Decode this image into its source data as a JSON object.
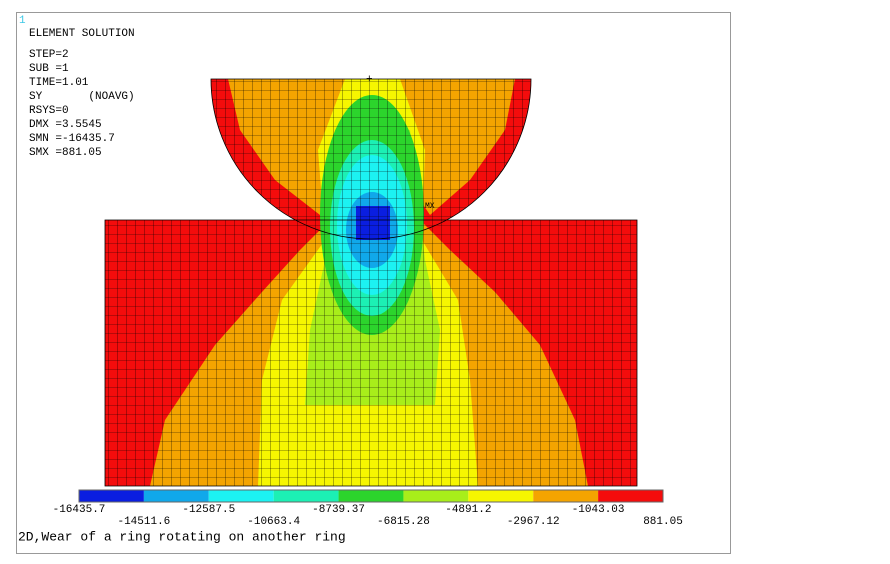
{
  "window_number": "1",
  "info": {
    "title": "ELEMENT SOLUTION",
    "lines": [
      "STEP=2",
      "SUB =1",
      "TIME=1.01",
      "SY       (NOAVG)",
      "RSYS=0",
      "DMX =3.5545",
      "SMN =-16435.7",
      "SMX =881.05"
    ]
  },
  "plot": {
    "max_marker": "MX"
  },
  "legend": {
    "colors": [
      "#0a1ee0",
      "#10a8ea",
      "#1cf2f2",
      "#1cf0b4",
      "#2cd42c",
      "#a8ee1a",
      "#f6f600",
      "#f4a400",
      "#f40c0c"
    ],
    "labels": [
      "-16435.7",
      "-14511.6",
      "-12587.5",
      "-10663.4",
      "-8739.37",
      "-6815.28",
      "-4891.2",
      "-2967.12",
      "-1043.03",
      "881.05"
    ]
  },
  "caption": "2D,Wear of a ring rotating on another ring"
}
